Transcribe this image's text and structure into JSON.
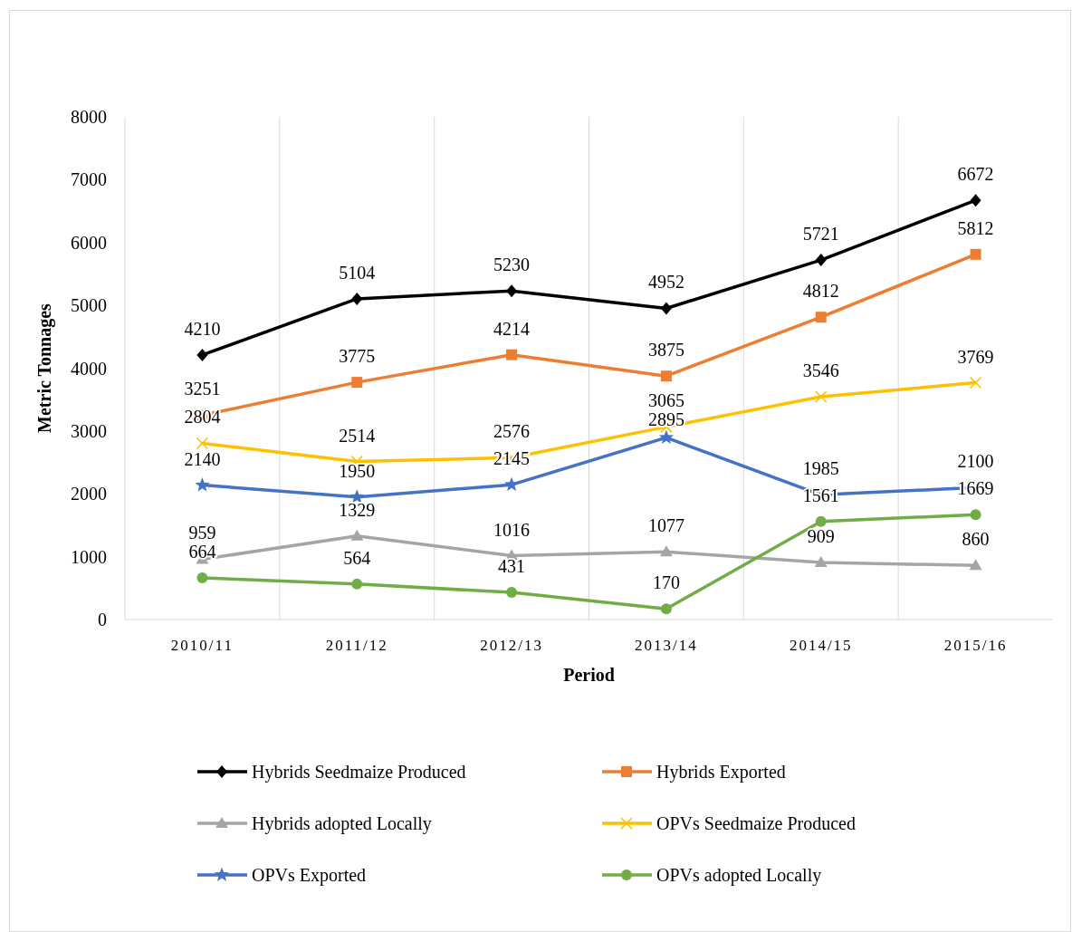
{
  "chart_data": {
    "type": "line",
    "xlabel": "Period",
    "ylabel": "Metric Tonnages",
    "categories": [
      "2010/11",
      "2011/12",
      "2012/13",
      "2013/14",
      "2014/15",
      "2015/16"
    ],
    "series": [
      {
        "name": "Hybrids Seedmaize Produced",
        "color": "#000000",
        "marker": "diamond",
        "values": [
          4210,
          5104,
          5230,
          4952,
          5721,
          6672
        ]
      },
      {
        "name": "Hybrids Exported",
        "color": "#ed7d31",
        "marker": "square",
        "values": [
          3251,
          3775,
          4214,
          3875,
          4812,
          5812
        ]
      },
      {
        "name": "Hybrids adopted Locally",
        "color": "#a5a5a5",
        "marker": "triangle",
        "values": [
          959,
          1329,
          1016,
          1077,
          909,
          860
        ]
      },
      {
        "name": "OPVs Seedmaize Produced",
        "color": "#ffc000",
        "marker": "cross",
        "values": [
          2804,
          2514,
          2576,
          3065,
          3546,
          3769
        ]
      },
      {
        "name": "OPVs Exported",
        "color": "#4472c4",
        "marker": "star",
        "values": [
          2140,
          1950,
          2145,
          2895,
          1985,
          2100
        ]
      },
      {
        "name": "OPVs adopted Locally",
        "color": "#70ad47",
        "marker": "circle",
        "values": [
          664,
          564,
          431,
          170,
          1561,
          1669
        ]
      }
    ],
    "ylim": [
      0,
      8000
    ],
    "yticks": [
      0,
      1000,
      2000,
      3000,
      4000,
      5000,
      6000,
      7000,
      8000
    ],
    "grid": "x",
    "legend": "bottom",
    "data_labels": true,
    "line_style": "solid"
  }
}
